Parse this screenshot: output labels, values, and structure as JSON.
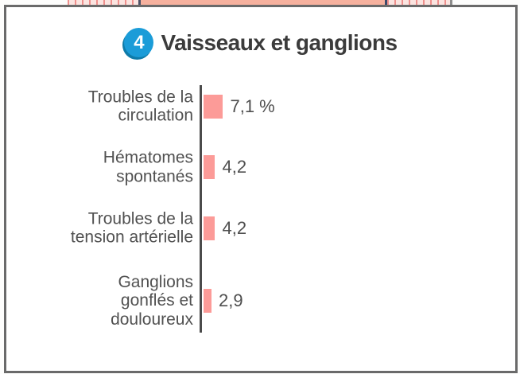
{
  "page": {
    "background": "#fdfdfc"
  },
  "top_strip": {
    "stripe_bg": "#fbe4e0",
    "stripe_color": "#ef908d",
    "salmon_band": "#f6b19e",
    "divider_dark": "#4d5166",
    "mark_navy": "#3a4a6b",
    "divider_gray": "#8d8d8d",
    "arc_blue": "#2d9ccc"
  },
  "panel": {
    "border_color": "#6a6a6a",
    "badge": "4",
    "badge_color": "#1b9cd8",
    "badge_shadow": "#0e7ba9",
    "title": "Vaisseaux et ganglions",
    "title_color": "#3b3b3b"
  },
  "chart_data": {
    "type": "bar",
    "orientation": "horizontal",
    "title": "Vaisseaux et ganglions",
    "unit": "%",
    "categories": [
      "Troubles de la circulation",
      "Hématomes spontanés",
      "Troubles de la tension artérielle",
      "Ganglions gonflés et douloureux"
    ],
    "category_lines": [
      [
        "Troubles de la",
        "circulation"
      ],
      [
        "Hématomes",
        "spontanés"
      ],
      [
        "Troubles de la",
        "tension artérielle"
      ],
      [
        "Ganglions",
        "gonflés et",
        "douloureux"
      ]
    ],
    "values": [
      7.1,
      4.2,
      4.2,
      2.9
    ],
    "value_labels": [
      "7,1 %",
      "4,2",
      "4,2",
      "2,9"
    ],
    "bar_color": "#fc9b98",
    "axis_color": "#4b4b4b",
    "label_color": "#515151",
    "value_color": "#4f4f4f",
    "xlim": [
      0,
      10
    ],
    "grid": false,
    "value_label_position": "right-of-bar",
    "legend": null
  }
}
